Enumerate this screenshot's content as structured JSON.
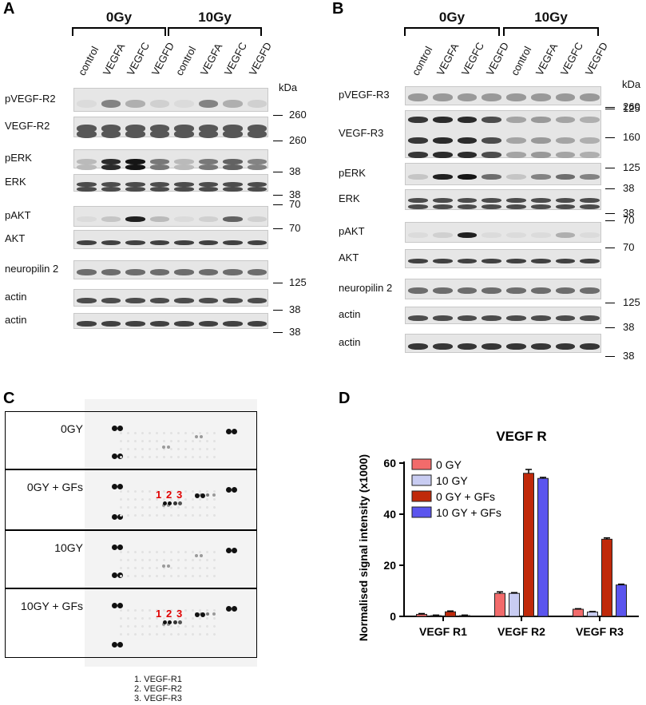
{
  "panels": {
    "a": "A",
    "b": "B",
    "c": "C",
    "d": "D"
  },
  "panelA": {
    "groups": [
      "0Gy",
      "10Gy"
    ],
    "lanes": [
      "control",
      "VEGFA",
      "VEGFC",
      "VEGFD",
      "control",
      "VEGFA",
      "VEGFC",
      "VEGFD"
    ],
    "kda_header": "kDa",
    "rows": [
      {
        "label": "pVEGF-R2",
        "markers": [
          "260"
        ]
      },
      {
        "label": "VEGF-R2",
        "markers": [
          "260"
        ]
      },
      {
        "label": "pERK",
        "markers": [
          "38"
        ]
      },
      {
        "label": "ERK",
        "markers": [
          "38"
        ]
      },
      {
        "label": "pAKT",
        "markers": [
          "70"
        ]
      },
      {
        "label": "AKT",
        "markers": [
          "70"
        ]
      },
      {
        "label": "neuropilin 2",
        "markers": [
          "125"
        ]
      },
      {
        "label": "actin",
        "markers": [
          "38"
        ]
      },
      {
        "label": "actin",
        "markers": [
          "38"
        ]
      }
    ]
  },
  "panelB": {
    "groups": [
      "0Gy",
      "10Gy"
    ],
    "lanes": [
      "control",
      "VEGFA",
      "VEGFC",
      "VEGFD",
      "control",
      "VEGFA",
      "VEGFC",
      "VEGFD"
    ],
    "kda_header": "kDa",
    "rows": [
      {
        "label": "pVEGF-R3",
        "markers": [
          "125"
        ]
      },
      {
        "label": "VEGF-R3",
        "markers": [
          "260",
          "160",
          "125"
        ]
      },
      {
        "label": "pERK",
        "markers": [
          "38"
        ]
      },
      {
        "label": "ERK",
        "markers": [
          "38"
        ]
      },
      {
        "label": "pAKT",
        "markers": [
          "70"
        ]
      },
      {
        "label": "AKT",
        "markers": [
          "70"
        ]
      },
      {
        "label": "neuropilin 2",
        "markers": [
          "125"
        ]
      },
      {
        "label": "actin",
        "markers": [
          "38"
        ]
      },
      {
        "label": "actin",
        "markers": [
          "38"
        ]
      }
    ]
  },
  "panelC": {
    "arrays": [
      {
        "label": "0GY",
        "numbers": null
      },
      {
        "label": "0GY + GFs",
        "numbers": [
          "1",
          "2",
          "3"
        ]
      },
      {
        "label": "10GY",
        "numbers": null
      },
      {
        "label": "10GY + GFs",
        "numbers": [
          "1",
          "2",
          "3"
        ]
      }
    ],
    "key": [
      "1. VEGF-R1",
      "2. VEGF-R2",
      "3. VEGF-R3"
    ]
  },
  "chart_data": {
    "type": "bar",
    "title": "VEGF R",
    "xlabel": "",
    "ylabel": "Normalised signal intensity (x1000)",
    "categories": [
      "VEGF R1",
      "VEGF R2",
      "VEGF R3"
    ],
    "ylim": [
      0,
      60
    ],
    "yticks": [
      0,
      20,
      40,
      60
    ],
    "series": [
      {
        "name": "0 GY",
        "color": "#f26b6b",
        "values": [
          0.8,
          9.0,
          2.8
        ],
        "errors": [
          0.3,
          0.6,
          0.2
        ]
      },
      {
        "name": "10 GY",
        "color": "#c8ccf2",
        "values": [
          0.3,
          9.0,
          1.7
        ],
        "errors": [
          0.2,
          0.3,
          0.2
        ]
      },
      {
        "name": "0 GY + GFs",
        "color": "#c0290a",
        "values": [
          1.8,
          56.0,
          30.2
        ],
        "errors": [
          0.3,
          1.5,
          0.5
        ]
      },
      {
        "name": "10 GY + GFs",
        "color": "#5b55ee",
        "values": [
          0.3,
          54.0,
          12.3
        ],
        "errors": [
          0.2,
          0.4,
          0.3
        ]
      }
    ],
    "legend": "top-left"
  }
}
